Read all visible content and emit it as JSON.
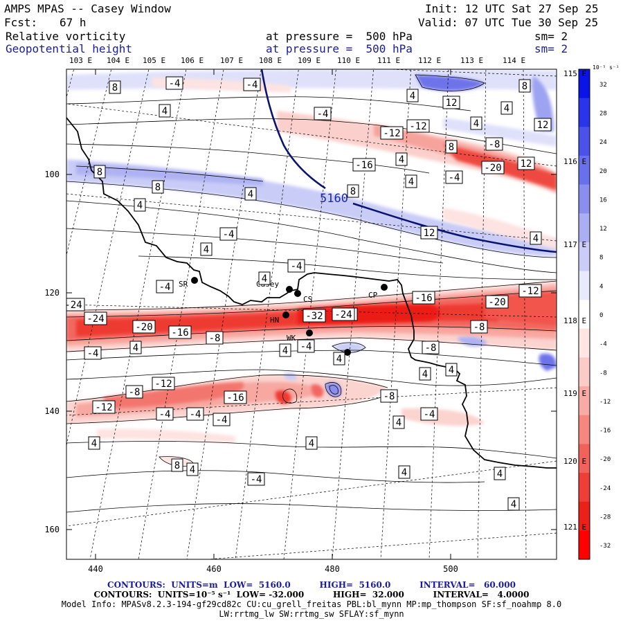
{
  "header": {
    "model_title": "AMPS MPAS -- Casey Window",
    "fcst_label": "Fcst:",
    "fcst_value": "67 h",
    "init": "Init: 12 UTC Sat 27 Sep 25",
    "valid": "Valid: 07 UTC Tue 30 Sep 25",
    "field1_name": "Relative vorticity",
    "field1_level": "at pressure =  500 hPa",
    "field1_smooth": "sm= 2",
    "field2_name": "Geopotential height",
    "field2_level": "at pressure =  500 hPa",
    "field2_smooth": "sm= 2"
  },
  "axes": {
    "x_ticks": [
      "440",
      "460",
      "480",
      "500"
    ],
    "y_ticks": [
      "100",
      "120",
      "140",
      "160"
    ],
    "lon_top": [
      "103 E",
      "104 E",
      "105 E",
      "106 E",
      "107 E",
      "108 E",
      "109 E",
      "110 E",
      "111 E",
      "112 E",
      "113 E",
      "114 E"
    ],
    "lon_right": [
      "115 E",
      "116 E",
      "117 E",
      "118 E",
      "119 E",
      "120 E",
      "121 E"
    ]
  },
  "colorbar": {
    "units": "10⁻⁵ s⁻¹",
    "levels": [
      "32",
      "28",
      "24",
      "20",
      "16",
      "12",
      "8",
      "4",
      "0",
      "-4",
      "-8",
      "-12",
      "-16",
      "-20",
      "-24",
      "-28",
      "-32"
    ],
    "colors": [
      "#0a14e6",
      "#2a34e8",
      "#4a52ea",
      "#6a70ec",
      "#8a8eef",
      "#aaaef3",
      "#cbcdf8",
      "#e8e9fc",
      "#ffffff",
      "#fde6e4",
      "#fbcbc7",
      "#f8aaa4",
      "#f5877f",
      "#f1625a",
      "#ee3e36",
      "#eb2018",
      "#ff0000"
    ]
  },
  "stations": [
    {
      "label": "SR"
    },
    {
      "label": "Casey"
    },
    {
      "label": "CS"
    },
    {
      "label": "CP"
    },
    {
      "label": "HN"
    },
    {
      "label": "WK"
    },
    {
      "label": "SA"
    }
  ],
  "height_contour_label": "5160",
  "vort_labels": [
    "8",
    "-4",
    "-4",
    "4",
    "12",
    "4",
    "8",
    "4",
    "-4",
    "4",
    "12",
    "-12",
    "-12",
    "8",
    "-8",
    "4",
    "-16",
    "-20",
    "12",
    "8",
    "8",
    "4",
    "8",
    "4",
    "-4",
    "12",
    "4",
    "-4",
    "4",
    "4",
    "-4",
    "4",
    "-4",
    "-24",
    "-32",
    "-8",
    "-16",
    "-20",
    "-24",
    "-20",
    "-16",
    "-12",
    "-8",
    "-8",
    "4",
    "4",
    "-4",
    "4",
    "-8",
    "4",
    "-4",
    "-12",
    "-8",
    "-12",
    "-4",
    "-16",
    "-4",
    "-4",
    "-8",
    "-4",
    "4",
    "4",
    "4",
    "4",
    "-4",
    "8",
    "4",
    "4",
    "-24",
    "4",
    "4"
  ],
  "footer": {
    "line1": "CONTOURS:  UNITS=m  LOW=  5160.0          HIGH=  5160.0          INTERVAL=   60.000",
    "line2": "CONTOURS:  UNITS=10⁻⁵ s⁻¹  LOW= -32.000          HIGH=  32.000          INTERVAL=   4.0000",
    "line3": "Model Info: MPASv8.2.3-194-gf29cd82c CU:cu_grell_freitas PBL:bl_mynn MP:mp_thompson SF:sf_noahmp 8.0",
    "line4": "LW:rrtmg_lw SW:rrtmg_sw SFLAY:sf_mynn"
  }
}
